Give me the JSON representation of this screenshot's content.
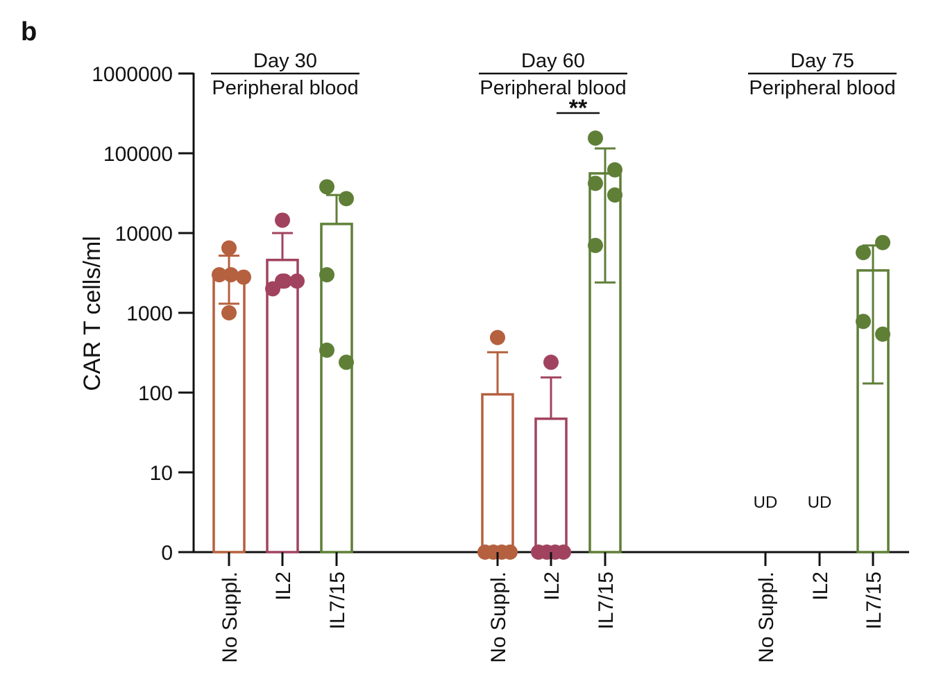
{
  "panel_label": "b",
  "colors": {
    "No Suppl.": "#b5603f",
    "IL2": "#a1435f",
    "IL7/15": "#5f7f37",
    "axis": "#111111"
  },
  "chart_data": {
    "type": "bar",
    "ylabel": "CAR T cells/ml",
    "yscale": "log-with-zero",
    "ylim": [
      0,
      1000000
    ],
    "yticks": [
      {
        "label": "0",
        "value": 0
      },
      {
        "label": "10",
        "value": 10
      },
      {
        "label": "100",
        "value": 100
      },
      {
        "label": "1000",
        "value": 1000
      },
      {
        "label": "10000",
        "value": 10000
      },
      {
        "label": "100000",
        "value": 100000
      },
      {
        "label": "1000000",
        "value": 1000000
      }
    ],
    "groups": [
      {
        "title": "Day 30",
        "subtitle": "Peripheral blood",
        "significance": "",
        "bars": [
          {
            "category": "No Suppl.",
            "mean": 3000,
            "error_upper": 5200,
            "error_lower": 1300,
            "points": [
              6500,
              3000,
              2800,
              3000,
              1000
            ],
            "ud": false
          },
          {
            "category": "IL2",
            "mean": 4600,
            "error_upper": 10000,
            "error_lower": null,
            "points": [
              14500,
              2000,
              2500,
              2500,
              2500
            ],
            "ud": false
          },
          {
            "category": "IL7/15",
            "mean": 13000,
            "error_upper": 30000,
            "error_lower": null,
            "points": [
              38000,
              27000,
              3000,
              240,
              340
            ],
            "ud": false
          }
        ]
      },
      {
        "title": "Day 60",
        "subtitle": "Peripheral blood",
        "significance": "**",
        "bars": [
          {
            "category": "No Suppl.",
            "mean": 95,
            "error_upper": 320,
            "error_lower": null,
            "points": [
              490,
              0,
              0,
              0,
              0
            ],
            "ud": false
          },
          {
            "category": "IL2",
            "mean": 47,
            "error_upper": 155,
            "error_lower": null,
            "points": [
              240,
              0,
              0,
              0,
              0
            ],
            "ud": false
          },
          {
            "category": "IL7/15",
            "mean": 56000,
            "error_upper": 115000,
            "error_lower": 2400,
            "points": [
              155000,
              62000,
              42000,
              30000,
              7000
            ],
            "ud": false
          }
        ]
      },
      {
        "title": "Day 75",
        "subtitle": "Peripheral blood",
        "significance": "",
        "bars": [
          {
            "category": "No Suppl.",
            "mean": null,
            "error_upper": null,
            "error_lower": null,
            "points": [],
            "ud": true,
            "ud_label": "UD"
          },
          {
            "category": "IL2",
            "mean": null,
            "error_upper": null,
            "error_lower": null,
            "points": [],
            "ud": true,
            "ud_label": "UD"
          },
          {
            "category": "IL7/15",
            "mean": 3400,
            "error_upper": 7000,
            "error_lower": 130,
            "points": [
              5700,
              7600,
              780,
              540
            ],
            "ud": false
          }
        ]
      }
    ]
  }
}
